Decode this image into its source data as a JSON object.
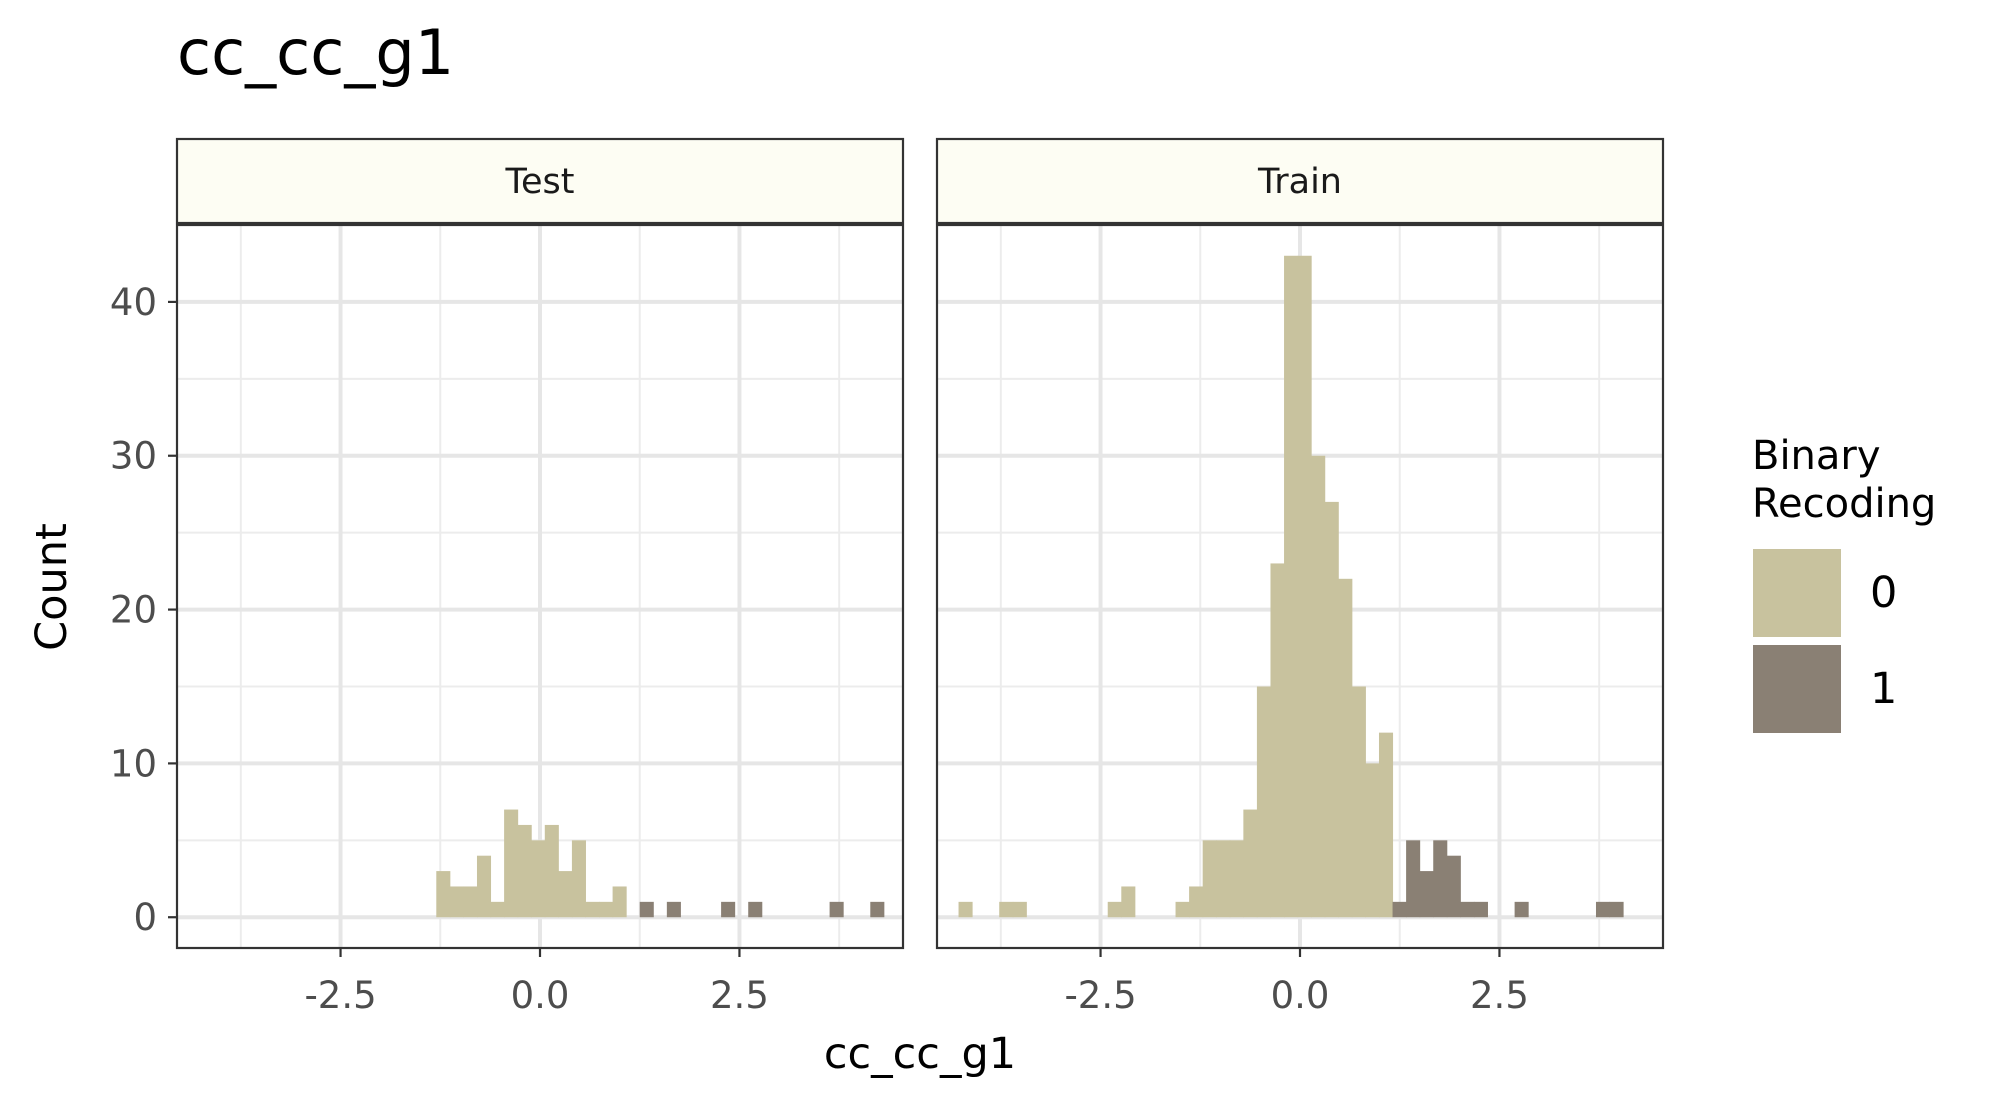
{
  "chart_data": {
    "type": "histogram",
    "title": "cc_cc_g1",
    "xlabel": "cc_cc_g1",
    "ylabel": "Count",
    "x_range": [
      -4.55,
      4.55
    ],
    "ylim": [
      -2,
      45
    ],
    "x_ticks": [
      -2.5,
      0.0,
      2.5
    ],
    "x_tick_labels": [
      "-2.5",
      "0.0",
      "2.5"
    ],
    "y_ticks": [
      0,
      10,
      20,
      30,
      40
    ],
    "y_tick_labels": [
      "0",
      "10",
      "20",
      "30",
      "40"
    ],
    "bin_width": 0.17,
    "grid": true,
    "legend": {
      "title": "Binary\nRecoding",
      "title_lines": [
        "Binary",
        "Recoding"
      ],
      "position": "right",
      "items": [
        {
          "label": "0",
          "color": "#c8c29e"
        },
        {
          "label": "1",
          "color": "#8a8074"
        }
      ]
    },
    "facets": [
      {
        "name": "Test",
        "bins": [
          {
            "x0": -1.3,
            "count": 3,
            "group": "0"
          },
          {
            "x0": -1.13,
            "count": 2,
            "group": "0"
          },
          {
            "x0": -0.96,
            "count": 2,
            "group": "0"
          },
          {
            "x0": -0.79,
            "count": 4,
            "group": "0"
          },
          {
            "x0": -0.62,
            "count": 1,
            "group": "0"
          },
          {
            "x0": -0.45,
            "count": 7,
            "group": "0"
          },
          {
            "x0": -0.28,
            "count": 6,
            "group": "0"
          },
          {
            "x0": -0.11,
            "count": 5,
            "group": "0"
          },
          {
            "x0": 0.06,
            "count": 6,
            "group": "0"
          },
          {
            "x0": 0.23,
            "count": 3,
            "group": "0"
          },
          {
            "x0": 0.4,
            "count": 5,
            "group": "0"
          },
          {
            "x0": 0.57,
            "count": 1,
            "group": "0"
          },
          {
            "x0": 0.74,
            "count": 1,
            "group": "0"
          },
          {
            "x0": 0.91,
            "count": 2,
            "group": "0"
          },
          {
            "x0": 1.25,
            "count": 1,
            "group": "1"
          },
          {
            "x0": 1.59,
            "count": 1,
            "group": "1"
          },
          {
            "x0": 2.27,
            "count": 1,
            "group": "1"
          },
          {
            "x0": 2.61,
            "count": 1,
            "group": "1"
          },
          {
            "x0": 3.63,
            "count": 1,
            "group": "1"
          },
          {
            "x0": 4.14,
            "count": 1,
            "group": "1"
          }
        ]
      },
      {
        "name": "Train",
        "bins": [
          {
            "x0": -4.28,
            "count": 1,
            "group": "0"
          },
          {
            "x0": -3.77,
            "count": 1,
            "group": "0"
          },
          {
            "x0": -3.6,
            "count": 1,
            "group": "0"
          },
          {
            "x0": -2.41,
            "count": 1,
            "group": "0"
          },
          {
            "x0": -2.24,
            "count": 2,
            "group": "0"
          },
          {
            "x0": -1.56,
            "count": 1,
            "group": "0"
          },
          {
            "x0": -1.39,
            "count": 2,
            "group": "0"
          },
          {
            "x0": -1.22,
            "count": 5,
            "group": "0"
          },
          {
            "x0": -1.05,
            "count": 5,
            "group": "0"
          },
          {
            "x0": -0.88,
            "count": 5,
            "group": "0"
          },
          {
            "x0": -0.71,
            "count": 7,
            "group": "0"
          },
          {
            "x0": -0.54,
            "count": 15,
            "group": "0"
          },
          {
            "x0": -0.37,
            "count": 23,
            "group": "0"
          },
          {
            "x0": -0.2,
            "count": 43,
            "group": "0"
          },
          {
            "x0": -0.03,
            "count": 43,
            "group": "0"
          },
          {
            "x0": 0.14,
            "count": 30,
            "group": "0"
          },
          {
            "x0": 0.31,
            "count": 27,
            "group": "0"
          },
          {
            "x0": 0.48,
            "count": 22,
            "group": "0"
          },
          {
            "x0": 0.65,
            "count": 15,
            "group": "0"
          },
          {
            "x0": 0.82,
            "count": 10,
            "group": "0"
          },
          {
            "x0": 0.99,
            "count": 12,
            "group": "0"
          },
          {
            "x0": 1.16,
            "count": 1,
            "group": "1"
          },
          {
            "x0": 1.33,
            "count": 5,
            "group": "1"
          },
          {
            "x0": 1.5,
            "count": 3,
            "group": "1"
          },
          {
            "x0": 1.67,
            "count": 5,
            "group": "1"
          },
          {
            "x0": 1.84,
            "count": 4,
            "group": "1"
          },
          {
            "x0": 2.01,
            "count": 1,
            "group": "1"
          },
          {
            "x0": 2.18,
            "count": 1,
            "group": "1"
          },
          {
            "x0": 2.69,
            "count": 1,
            "group": "1"
          },
          {
            "x0": 3.71,
            "count": 1,
            "group": "1"
          },
          {
            "x0": 3.88,
            "count": 1,
            "group": "1"
          }
        ]
      }
    ]
  }
}
